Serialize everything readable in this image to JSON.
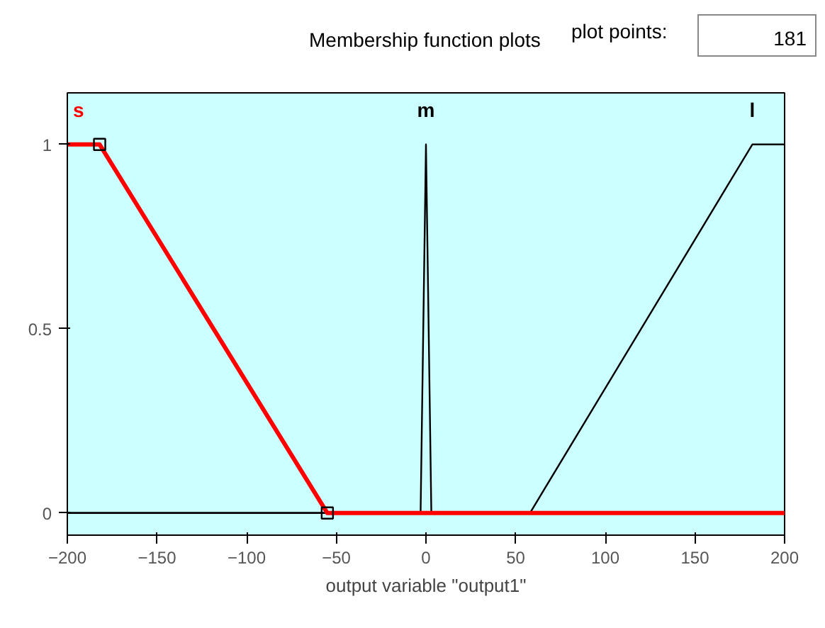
{
  "chart_data": {
    "type": "line",
    "title": "Membership function plots",
    "xlabel": "output variable \"output1\"",
    "annotations": [
      "plot points:",
      "181"
    ],
    "xlim": [
      -200,
      200
    ],
    "ylim": [
      -0.06,
      1.14
    ],
    "xticks": [
      -200,
      -150,
      -100,
      -50,
      0,
      50,
      100,
      150,
      200
    ],
    "yticks": [
      0,
      0.5,
      1
    ],
    "grid": false,
    "series": [
      {
        "name": "m",
        "color": "#000000",
        "x": [
          -200,
          -3,
          0,
          3,
          200
        ],
        "values": [
          0,
          0,
          1,
          0,
          0
        ]
      },
      {
        "name": "l",
        "color": "#000000",
        "x": [
          -200,
          58,
          182,
          200
        ],
        "values": [
          0,
          0,
          1,
          1
        ]
      },
      {
        "name": "s",
        "color": "#ff0000",
        "x": [
          -200,
          -182,
          -55,
          200
        ],
        "values": [
          1,
          1,
          0,
          0
        ]
      },
      {
        "type": "scatter",
        "marker": "square",
        "color": "#000000",
        "x": [
          -182,
          -55
        ],
        "values": [
          1,
          0
        ]
      }
    ]
  }
}
